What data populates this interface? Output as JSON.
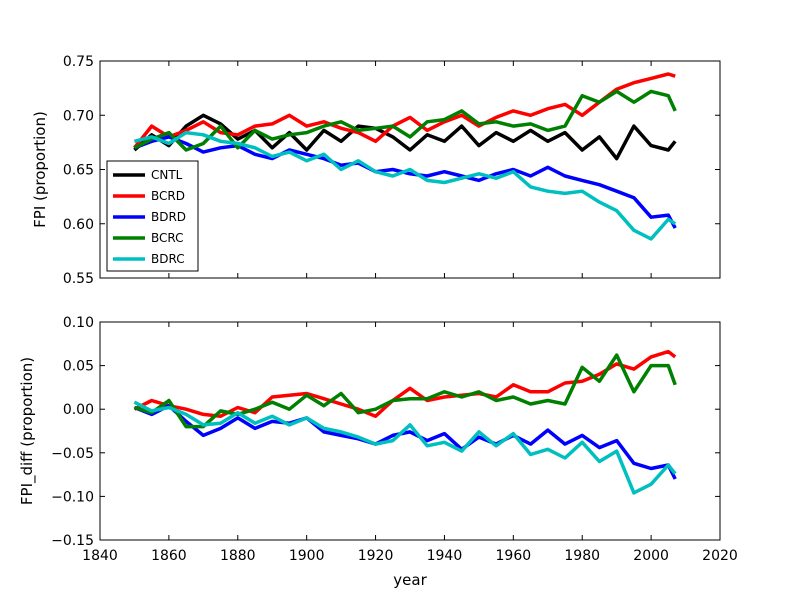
{
  "chart_data": [
    {
      "type": "line",
      "title": "",
      "xlabel": "",
      "ylabel": "FPI (proportion)",
      "xlim": [
        1840,
        2020
      ],
      "ylim": [
        0.55,
        0.75
      ],
      "yticks": [
        "0.55",
        "0.60",
        "0.65",
        "0.70",
        "0.75"
      ],
      "legend": "lower-left",
      "grid": false,
      "x": [
        1850,
        1855,
        1860,
        1865,
        1870,
        1875,
        1880,
        1885,
        1890,
        1895,
        1900,
        1905,
        1910,
        1915,
        1920,
        1925,
        1930,
        1935,
        1940,
        1945,
        1950,
        1955,
        1960,
        1965,
        1970,
        1975,
        1980,
        1985,
        1990,
        1995,
        2000,
        2005,
        2007
      ],
      "series": [
        {
          "name": "CNTL",
          "color": "#000000",
          "values": [
            0.668,
            0.682,
            0.672,
            0.69,
            0.7,
            0.692,
            0.678,
            0.686,
            0.67,
            0.684,
            0.668,
            0.686,
            0.676,
            0.69,
            0.688,
            0.68,
            0.668,
            0.682,
            0.676,
            0.69,
            0.672,
            0.684,
            0.676,
            0.686,
            0.676,
            0.684,
            0.668,
            0.68,
            0.66,
            0.69,
            0.672,
            0.668,
            0.676
          ]
        },
        {
          "name": "BCRD",
          "color": "#ff0000",
          "values": [
            0.67,
            0.69,
            0.68,
            0.686,
            0.694,
            0.684,
            0.682,
            0.69,
            0.692,
            0.7,
            0.69,
            0.694,
            0.688,
            0.684,
            0.676,
            0.69,
            0.698,
            0.686,
            0.694,
            0.7,
            0.69,
            0.698,
            0.704,
            0.7,
            0.706,
            0.71,
            0.7,
            0.712,
            0.724,
            0.73,
            0.734,
            0.738,
            0.736
          ]
        },
        {
          "name": "BDRD",
          "color": "#0000ff",
          "values": [
            0.67,
            0.676,
            0.68,
            0.674,
            0.666,
            0.67,
            0.672,
            0.664,
            0.66,
            0.668,
            0.664,
            0.66,
            0.654,
            0.656,
            0.648,
            0.65,
            0.646,
            0.644,
            0.648,
            0.644,
            0.64,
            0.646,
            0.65,
            0.644,
            0.652,
            0.644,
            0.64,
            0.636,
            0.63,
            0.624,
            0.606,
            0.608,
            0.596
          ]
        },
        {
          "name": "BCRC",
          "color": "#008000",
          "values": [
            0.67,
            0.678,
            0.684,
            0.668,
            0.674,
            0.69,
            0.67,
            0.686,
            0.678,
            0.682,
            0.684,
            0.69,
            0.694,
            0.686,
            0.688,
            0.69,
            0.68,
            0.694,
            0.696,
            0.704,
            0.692,
            0.694,
            0.69,
            0.692,
            0.686,
            0.69,
            0.718,
            0.712,
            0.722,
            0.712,
            0.722,
            0.718,
            0.704
          ]
        },
        {
          "name": "BDRC",
          "color": "#00bfbf",
          "values": [
            0.676,
            0.68,
            0.674,
            0.684,
            0.682,
            0.676,
            0.674,
            0.67,
            0.662,
            0.666,
            0.658,
            0.664,
            0.65,
            0.658,
            0.648,
            0.644,
            0.65,
            0.64,
            0.638,
            0.642,
            0.646,
            0.642,
            0.648,
            0.634,
            0.63,
            0.628,
            0.63,
            0.62,
            0.612,
            0.594,
            0.586,
            0.604,
            0.6
          ]
        }
      ]
    },
    {
      "type": "line",
      "title": "",
      "xlabel": "year",
      "ylabel": "FPI_diff (proportion)",
      "xlim": [
        1840,
        2020
      ],
      "ylim": [
        -0.15,
        0.1
      ],
      "yticks": [
        "−0.15",
        "−0.10",
        "−0.05",
        "0.00",
        "0.05",
        "0.10"
      ],
      "xticks": [
        "1840",
        "1860",
        "1880",
        "1900",
        "1920",
        "1940",
        "1960",
        "1980",
        "2000",
        "2020"
      ],
      "grid": false,
      "x": [
        1850,
        1855,
        1860,
        1865,
        1870,
        1875,
        1880,
        1885,
        1890,
        1895,
        1900,
        1905,
        1910,
        1915,
        1920,
        1925,
        1930,
        1935,
        1940,
        1945,
        1950,
        1955,
        1960,
        1965,
        1970,
        1975,
        1980,
        1985,
        1990,
        1995,
        2000,
        2005,
        2007
      ],
      "series": [
        {
          "name": "BCRD",
          "color": "#ff0000",
          "values": [
            0.0,
            0.01,
            0.004,
            0.0,
            -0.006,
            -0.008,
            0.002,
            -0.004,
            0.014,
            0.016,
            0.018,
            0.012,
            0.006,
            0.0,
            -0.008,
            0.01,
            0.024,
            0.01,
            0.014,
            0.016,
            0.018,
            0.014,
            0.028,
            0.02,
            0.02,
            0.03,
            0.032,
            0.04,
            0.052,
            0.046,
            0.06,
            0.066,
            0.06
          ]
        },
        {
          "name": "BDRD",
          "color": "#0000ff",
          "values": [
            0.002,
            -0.006,
            0.004,
            -0.014,
            -0.03,
            -0.022,
            -0.01,
            -0.022,
            -0.014,
            -0.016,
            -0.01,
            -0.026,
            -0.03,
            -0.034,
            -0.04,
            -0.03,
            -0.026,
            -0.036,
            -0.028,
            -0.046,
            -0.032,
            -0.04,
            -0.03,
            -0.04,
            -0.024,
            -0.04,
            -0.03,
            -0.044,
            -0.036,
            -0.062,
            -0.068,
            -0.064,
            -0.08
          ]
        },
        {
          "name": "BCRC",
          "color": "#008000",
          "values": [
            0.002,
            -0.004,
            0.01,
            -0.02,
            -0.02,
            -0.002,
            -0.006,
            0.0,
            0.008,
            0.0,
            0.016,
            0.004,
            0.018,
            -0.004,
            0.0,
            0.01,
            0.012,
            0.012,
            0.02,
            0.014,
            0.02,
            0.01,
            0.014,
            0.006,
            0.01,
            0.006,
            0.048,
            0.032,
            0.062,
            0.02,
            0.05,
            0.05,
            0.028
          ]
        },
        {
          "name": "BDRC",
          "color": "#00bfbf",
          "values": [
            0.008,
            -0.002,
            0.002,
            -0.006,
            -0.018,
            -0.016,
            -0.004,
            -0.016,
            -0.008,
            -0.018,
            -0.01,
            -0.022,
            -0.026,
            -0.032,
            -0.04,
            -0.036,
            -0.018,
            -0.042,
            -0.038,
            -0.048,
            -0.026,
            -0.042,
            -0.028,
            -0.052,
            -0.046,
            -0.056,
            -0.038,
            -0.06,
            -0.048,
            -0.096,
            -0.086,
            -0.064,
            -0.074
          ]
        }
      ]
    }
  ]
}
